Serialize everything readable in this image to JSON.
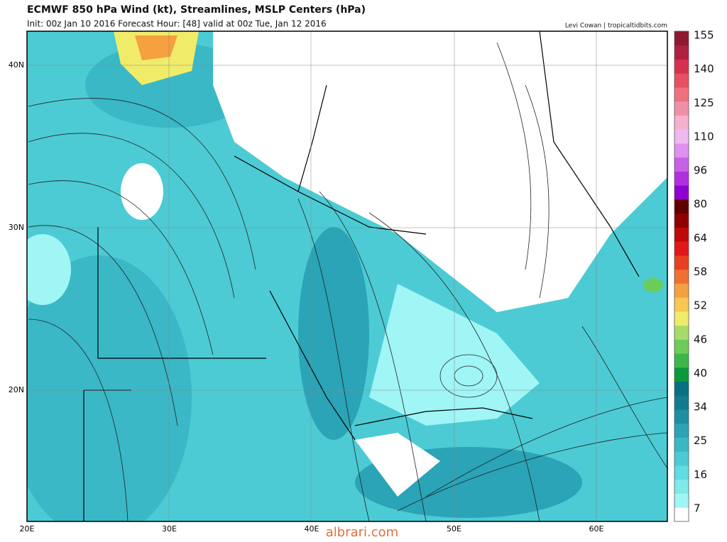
{
  "header": {
    "title": "ECMWF 850 hPa Wind (kt), Streamlines, MSLP Centers (hPa)",
    "subtitle": "Init: 00z Jan 10 2016   Forecast Hour: [48]   valid at 00z Tue, Jan 12 2016",
    "credit": "Levi Cowan | tropicaltidbits.com"
  },
  "map": {
    "lat_labels": [
      "40N",
      "30N",
      "20N"
    ],
    "lon_labels": [
      "20E",
      "30E",
      "40E",
      "50E",
      "60E"
    ]
  },
  "colorbar": {
    "ticks": [
      7,
      16,
      25,
      34,
      40,
      46,
      52,
      58,
      64,
      80,
      96,
      110,
      125,
      140,
      155
    ],
    "colors": [
      "#ffffff",
      "#a0f5f5",
      "#7eeaea",
      "#5fdde0",
      "#4ccbd4",
      "#3ab8c6",
      "#2aa4b6",
      "#1c8fa3",
      "#117b90",
      "#087080",
      "#0a9a3a",
      "#3cb84a",
      "#6ccc5a",
      "#a6dc6a",
      "#f0ec6a",
      "#f8c850",
      "#f6a040",
      "#f07030",
      "#e84020",
      "#e01818",
      "#c00808",
      "#900000",
      "#600000",
      "#9000d0",
      "#b030e0",
      "#c860e8",
      "#e090f0",
      "#f0b8f0",
      "#f8b0d0",
      "#f090a8",
      "#f07080",
      "#e85060",
      "#d83050",
      "#b02040",
      "#901830"
    ]
  },
  "watermark": "albrari.com"
}
